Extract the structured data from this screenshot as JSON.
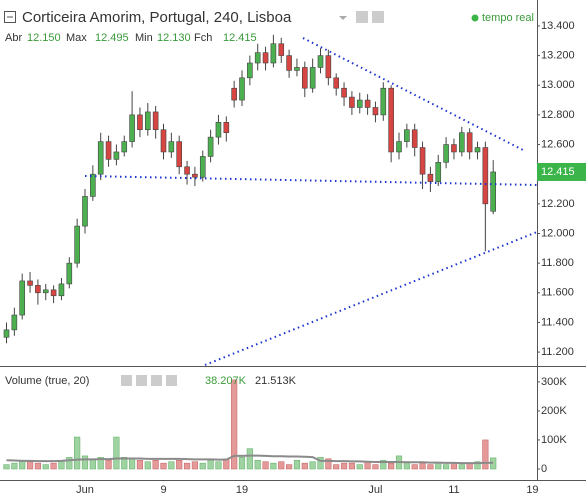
{
  "chart_data": [
    {
      "type": "candlestick",
      "title": "Corticeira Amorim, Portugal, 240, Lisboa",
      "status": "tempo real",
      "legend": [
        {
          "key": "Abr",
          "value_label": "12.150"
        },
        {
          "key": "Max",
          "value_label": "12.495"
        },
        {
          "key": "Min",
          "value_label": "12.130"
        },
        {
          "key": "Fch",
          "value_label": "12.415"
        }
      ],
      "categories": [
        null,
        null,
        null,
        null,
        null,
        null,
        null,
        null,
        null,
        null,
        "Jun",
        null,
        null,
        null,
        null,
        null,
        null,
        null,
        null,
        null,
        "9",
        null,
        null,
        null,
        null,
        null,
        null,
        null,
        null,
        null,
        "19",
        null,
        null,
        null,
        null,
        null,
        null,
        null,
        null,
        null,
        null,
        null,
        null,
        null,
        null,
        null,
        null,
        "Jul",
        null,
        null,
        null,
        null,
        null,
        null,
        null,
        null,
        null,
        "11",
        null,
        null,
        null,
        null,
        null,
        null,
        null,
        null,
        null,
        "19"
      ],
      "open": [
        11.3,
        11.35,
        11.45,
        11.68,
        11.65,
        11.6,
        11.62,
        11.58,
        11.66,
        11.8,
        12.05,
        12.25,
        12.4,
        12.62,
        12.5,
        12.55,
        12.62,
        12.8,
        12.7,
        12.82,
        12.7,
        12.55,
        12.62,
        12.45,
        12.4,
        12.38,
        12.52,
        12.65,
        12.75,
        12.98,
        12.9,
        13.05,
        13.15,
        13.22,
        13.15,
        13.28,
        13.2,
        13.1,
        13.12,
        12.98,
        13.12,
        13.2,
        13.05,
        12.98,
        12.92,
        12.85,
        12.9,
        12.85,
        12.8,
        12.98,
        12.55,
        12.62,
        12.7,
        12.58,
        12.4,
        12.35,
        12.48,
        12.6,
        12.55,
        12.68,
        12.55,
        12.58,
        12.15,
        null,
        null,
        null,
        null,
        null
      ],
      "high": [
        11.4,
        11.5,
        11.73,
        11.74,
        11.69,
        11.66,
        11.65,
        11.7,
        11.84,
        12.1,
        12.3,
        12.46,
        12.68,
        12.66,
        12.6,
        12.66,
        12.96,
        12.85,
        12.88,
        12.86,
        12.74,
        12.68,
        12.66,
        12.49,
        12.45,
        12.56,
        12.7,
        12.8,
        12.79,
        13.03,
        13.1,
        13.2,
        13.28,
        13.26,
        13.34,
        13.32,
        13.24,
        13.18,
        13.16,
        13.18,
        13.25,
        13.24,
        13.08,
        13.02,
        12.96,
        12.95,
        12.94,
        12.89,
        13.02,
        13.0,
        12.68,
        12.74,
        12.74,
        12.62,
        12.45,
        12.53,
        12.65,
        12.64,
        12.72,
        12.71,
        12.62,
        12.62,
        12.495,
        null,
        null,
        null,
        null,
        null
      ],
      "low": [
        11.26,
        11.31,
        11.42,
        11.6,
        11.52,
        11.55,
        11.53,
        11.55,
        11.63,
        11.77,
        12.0,
        12.22,
        12.36,
        12.45,
        12.46,
        12.52,
        12.58,
        12.65,
        12.66,
        12.64,
        12.5,
        12.51,
        12.4,
        12.33,
        12.32,
        12.35,
        12.48,
        12.6,
        12.62,
        12.85,
        12.86,
        13.0,
        13.1,
        13.1,
        13.12,
        13.15,
        13.05,
        13.06,
        12.92,
        12.95,
        13.08,
        13.0,
        12.93,
        12.86,
        12.8,
        12.81,
        12.8,
        12.75,
        12.76,
        12.48,
        12.5,
        12.58,
        12.52,
        12.3,
        12.28,
        12.32,
        12.44,
        12.5,
        12.52,
        12.5,
        12.5,
        11.88,
        12.13,
        null,
        null,
        null,
        null,
        null
      ],
      "close": [
        11.35,
        11.45,
        11.68,
        11.65,
        11.6,
        11.62,
        11.58,
        11.66,
        11.8,
        12.05,
        12.25,
        12.4,
        12.62,
        12.5,
        12.55,
        12.62,
        12.8,
        12.7,
        12.82,
        12.7,
        12.55,
        12.62,
        12.45,
        12.4,
        12.38,
        12.52,
        12.65,
        12.75,
        12.68,
        12.9,
        13.05,
        13.15,
        13.22,
        13.15,
        13.28,
        13.2,
        13.1,
        13.12,
        12.98,
        13.12,
        13.2,
        13.05,
        12.98,
        12.92,
        12.85,
        12.9,
        12.85,
        12.8,
        12.98,
        12.55,
        12.62,
        12.7,
        12.58,
        12.4,
        12.35,
        12.48,
        12.6,
        12.55,
        12.68,
        12.55,
        12.58,
        12.2,
        12.415,
        null,
        null,
        null,
        null,
        null
      ],
      "up_color": "#4caf50",
      "down_color": "#d64541",
      "last_price_color": "#3bb54a",
      "ylim": [
        11.113,
        13.575
      ],
      "yticks": [
        {
          "value": 11.2,
          "label": "11.200"
        },
        {
          "value": 11.4,
          "label": "11.400"
        },
        {
          "value": 11.6,
          "label": "11.600"
        },
        {
          "value": 11.8,
          "label": "11.800"
        },
        {
          "value": 12.0,
          "label": "12.000"
        },
        {
          "value": 12.2,
          "label": "12.200"
        },
        {
          "value": 12.4,
          "label": "12.400"
        },
        {
          "value": 12.6,
          "label": "12.600"
        },
        {
          "value": 12.8,
          "label": "12.800"
        },
        {
          "value": 13.0,
          "label": "13.000"
        },
        {
          "value": 13.2,
          "label": "13.200"
        },
        {
          "value": 13.4,
          "label": "13.400"
        }
      ]
    },
    {
      "type": "bar",
      "title": "Volume (true, 20)",
      "values": [
        15000,
        20000,
        30000,
        25000,
        20000,
        15000,
        20000,
        30000,
        40000,
        110000,
        45000,
        35000,
        40000,
        30000,
        110000,
        40000,
        35000,
        30000,
        25000,
        30000,
        20000,
        25000,
        30000,
        20000,
        25000,
        20000,
        30000,
        25000,
        35000,
        307000,
        40000,
        70000,
        30000,
        25000,
        20000,
        25000,
        15000,
        30000,
        20000,
        25000,
        40000,
        35000,
        15000,
        20000,
        20000,
        15000,
        25000,
        15000,
        30000,
        20000,
        45000,
        25000,
        15000,
        20000,
        15000,
        20000,
        15000,
        20000,
        15000,
        20000,
        25000,
        100000,
        38207,
        null,
        null,
        null,
        null,
        null
      ],
      "ma_values": [
        30000,
        29000,
        28000,
        28000,
        27000,
        27000,
        27000,
        28000,
        30000,
        32000,
        33000,
        33000,
        34000,
        34000,
        36000,
        36000,
        36000,
        36000,
        35000,
        35000,
        35000,
        35000,
        35000,
        34000,
        33000,
        33000,
        33000,
        32000,
        32000,
        45000,
        45000,
        46000,
        46000,
        45000,
        44000,
        44000,
        43000,
        43000,
        42000,
        41000,
        28000,
        28000,
        27000,
        27000,
        26000,
        26000,
        25000,
        24000,
        24000,
        24000,
        24000,
        23000,
        23000,
        23000,
        22000,
        22000,
        21000,
        21000,
        20000,
        20000,
        20000,
        21000,
        21513,
        null,
        null,
        null,
        null,
        null
      ],
      "legend_values": [
        {
          "value": 38207,
          "label": "38.207K"
        },
        {
          "value": 21513,
          "label": "21.513K"
        }
      ],
      "up_color": "#9fd4a2",
      "down_color": "#e59a9a",
      "ma_color": "#8a8a8a",
      "ylim": [
        -38000,
        341000
      ],
      "yticks": [
        0,
        {
          "value": 100000,
          "label": "100K"
        },
        {
          "value": 200000,
          "label": "200K"
        },
        {
          "value": 300000,
          "label": "300K"
        }
      ]
    }
  ]
}
